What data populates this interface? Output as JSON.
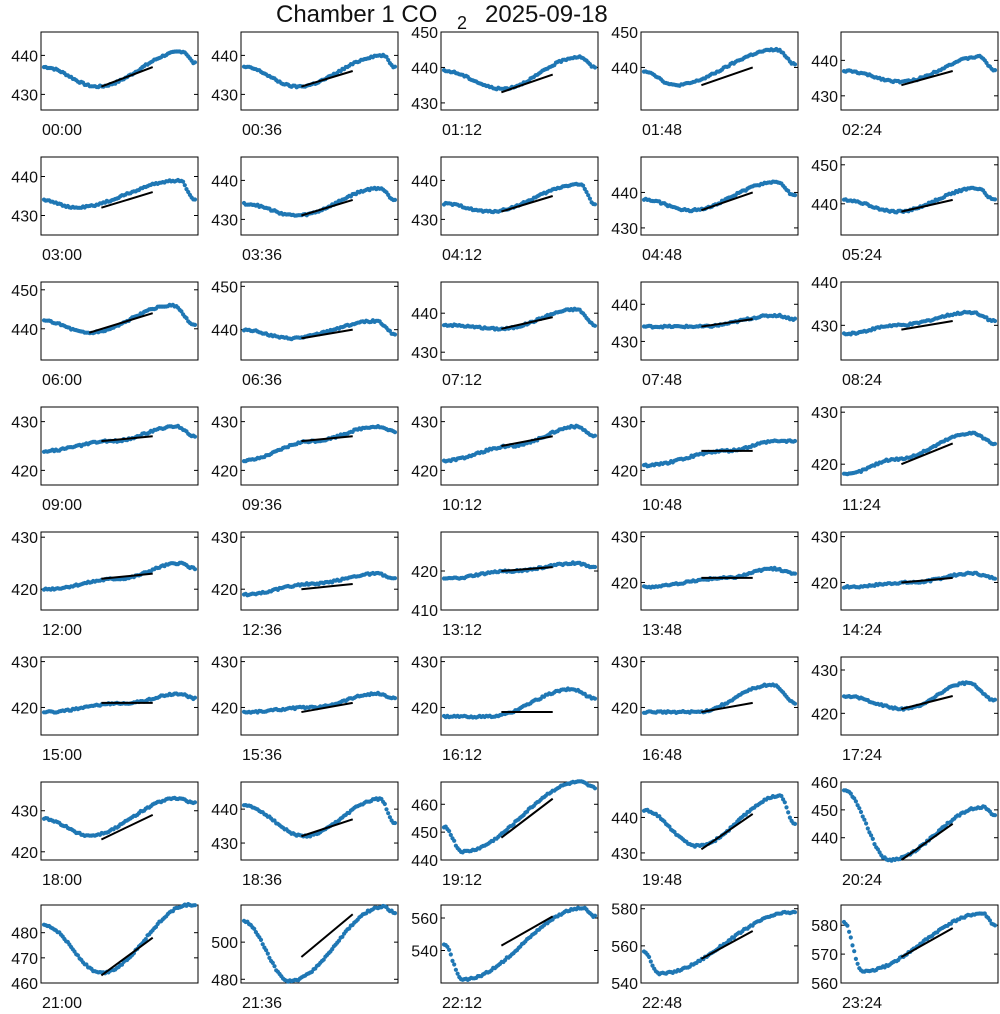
{
  "chart_data": {
    "type": "scatter",
    "title_main": "Chamber 1 CO",
    "title_sub": "2",
    "title_date": "2025-09-18",
    "layout": "8 rows x 5 columns of small multiples",
    "marker_color": "#1f77b4",
    "fit_line_color": "#000000",
    "grid": false,
    "panels": [
      {
        "label": "00:00",
        "ylim": [
          426,
          446
        ],
        "yticks": [
          430,
          440
        ],
        "start": 437,
        "min": [
          0.35,
          432
        ],
        "peak": [
          0.92,
          441
        ],
        "end": 438,
        "fit": [
          [
            0.38,
            432
          ],
          [
            0.72,
            437
          ]
        ]
      },
      {
        "label": "00:36",
        "ylim": [
          426,
          446
        ],
        "yticks": [
          430,
          440
        ],
        "start": 437,
        "min": [
          0.35,
          432
        ],
        "peak": [
          0.92,
          440
        ],
        "end": 437,
        "fit": [
          [
            0.38,
            432
          ],
          [
            0.72,
            436
          ]
        ]
      },
      {
        "label": "01:12",
        "ylim": [
          428,
          450
        ],
        "yticks": [
          430,
          440,
          450
        ],
        "start": 439,
        "min": [
          0.38,
          434
        ],
        "peak": [
          0.9,
          443
        ],
        "end": 440,
        "fit": [
          [
            0.38,
            433
          ],
          [
            0.72,
            438
          ]
        ]
      },
      {
        "label": "01:48",
        "ylim": [
          428,
          450
        ],
        "yticks": [
          440,
          450
        ],
        "start": 439,
        "min": [
          0.2,
          435
        ],
        "peak": [
          0.88,
          445
        ],
        "end": 441,
        "fit": [
          [
            0.38,
            435
          ],
          [
            0.72,
            440
          ]
        ]
      },
      {
        "label": "02:24",
        "ylim": [
          426,
          448
        ],
        "yticks": [
          430,
          440
        ],
        "start": 437,
        "min": [
          0.38,
          434
        ],
        "peak": [
          0.9,
          441
        ],
        "end": 437,
        "fit": [
          [
            0.38,
            433
          ],
          [
            0.72,
            437
          ]
        ]
      },
      {
        "label": "03:00",
        "ylim": [
          425,
          445
        ],
        "yticks": [
          430,
          440
        ],
        "start": 434,
        "min": [
          0.2,
          432
        ],
        "peak": [
          0.9,
          439
        ],
        "end": 434,
        "fit": [
          [
            0.38,
            432
          ],
          [
            0.72,
            436
          ]
        ]
      },
      {
        "label": "03:36",
        "ylim": [
          426,
          446
        ],
        "yticks": [
          430,
          440
        ],
        "start": 434,
        "min": [
          0.35,
          431
        ],
        "peak": [
          0.9,
          438
        ],
        "end": 435,
        "fit": [
          [
            0.38,
            431
          ],
          [
            0.72,
            435
          ]
        ]
      },
      {
        "label": "04:12",
        "ylim": [
          426,
          446
        ],
        "yticks": [
          430,
          440
        ],
        "start": 434,
        "min": [
          0.3,
          432
        ],
        "peak": [
          0.9,
          439
        ],
        "end": 434,
        "fit": [
          [
            0.38,
            432
          ],
          [
            0.72,
            436
          ]
        ]
      },
      {
        "label": "04:48",
        "ylim": [
          428,
          450
        ],
        "yticks": [
          430,
          440
        ],
        "start": 438,
        "min": [
          0.3,
          435
        ],
        "peak": [
          0.88,
          443
        ],
        "end": 439,
        "fit": [
          [
            0.38,
            435
          ],
          [
            0.72,
            440
          ]
        ]
      },
      {
        "label": "05:24",
        "ylim": [
          432,
          452
        ],
        "yticks": [
          440,
          450
        ],
        "start": 441,
        "min": [
          0.35,
          438
        ],
        "peak": [
          0.88,
          444
        ],
        "end": 441,
        "fit": [
          [
            0.38,
            438
          ],
          [
            0.72,
            441
          ]
        ]
      },
      {
        "label": "06:00",
        "ylim": [
          432,
          452
        ],
        "yticks": [
          440,
          450
        ],
        "start": 442,
        "min": [
          0.3,
          439
        ],
        "peak": [
          0.85,
          446
        ],
        "end": 441,
        "fit": [
          [
            0.3,
            439
          ],
          [
            0.72,
            444
          ]
        ]
      },
      {
        "label": "06:36",
        "ylim": [
          433,
          451
        ],
        "yticks": [
          440,
          450
        ],
        "start": 440,
        "min": [
          0.3,
          438
        ],
        "peak": [
          0.88,
          442
        ],
        "end": 439,
        "fit": [
          [
            0.38,
            438
          ],
          [
            0.72,
            440
          ]
        ]
      },
      {
        "label": "07:12",
        "ylim": [
          428,
          448
        ],
        "yticks": [
          430,
          440
        ],
        "start": 437,
        "min": [
          0.38,
          436
        ],
        "peak": [
          0.88,
          441
        ],
        "end": 437,
        "fit": [
          [
            0.38,
            436
          ],
          [
            0.72,
            439
          ]
        ]
      },
      {
        "label": "07:48",
        "ylim": [
          425,
          446
        ],
        "yticks": [
          430,
          440
        ],
        "start": 434,
        "min": [
          0.38,
          434
        ],
        "peak": [
          0.88,
          437
        ],
        "end": 436,
        "fit": [
          [
            0.38,
            434
          ],
          [
            0.72,
            436
          ]
        ]
      },
      {
        "label": "08:24",
        "ylim": [
          422,
          440
        ],
        "yticks": [
          430,
          440
        ],
        "start": 428,
        "min": [
          0.35,
          430
        ],
        "peak": [
          0.85,
          433
        ],
        "end": 431,
        "fit": [
          [
            0.38,
            429
          ],
          [
            0.72,
            431
          ]
        ]
      },
      {
        "label": "09:00",
        "ylim": [
          417,
          433
        ],
        "yticks": [
          420,
          430
        ],
        "start": 424,
        "min": [
          0.45,
          426
        ],
        "peak": [
          0.88,
          429
        ],
        "end": 427,
        "fit": [
          [
            0.38,
            426
          ],
          [
            0.72,
            427
          ]
        ]
      },
      {
        "label": "09:36",
        "ylim": [
          417,
          433
        ],
        "yticks": [
          420,
          430
        ],
        "start": 422,
        "min": [
          0.45,
          426
        ],
        "peak": [
          0.88,
          429
        ],
        "end": 428,
        "fit": [
          [
            0.38,
            426
          ],
          [
            0.72,
            427
          ]
        ]
      },
      {
        "label": "10:12",
        "ylim": [
          417,
          433
        ],
        "yticks": [
          420,
          430
        ],
        "start": 422,
        "min": [
          0.45,
          425
        ],
        "peak": [
          0.88,
          429
        ],
        "end": 427,
        "fit": [
          [
            0.38,
            425
          ],
          [
            0.72,
            427
          ]
        ]
      },
      {
        "label": "10:48",
        "ylim": [
          417,
          433
        ],
        "yticks": [
          420,
          430
        ],
        "start": 421,
        "min": [
          0.55,
          424
        ],
        "peak": [
          0.88,
          426
        ],
        "end": 426,
        "fit": [
          [
            0.38,
            424
          ],
          [
            0.72,
            424
          ]
        ]
      },
      {
        "label": "11:24",
        "ylim": [
          416,
          431
        ],
        "yticks": [
          420,
          430
        ],
        "start": 418,
        "min": [
          0.35,
          421
        ],
        "peak": [
          0.85,
          426
        ],
        "end": 424,
        "fit": [
          [
            0.38,
            420
          ],
          [
            0.72,
            424
          ]
        ]
      },
      {
        "label": "12:00",
        "ylim": [
          416,
          431
        ],
        "yticks": [
          420,
          430
        ],
        "start": 420,
        "min": [
          0.5,
          422
        ],
        "peak": [
          0.9,
          425
        ],
        "end": 424,
        "fit": [
          [
            0.38,
            422
          ],
          [
            0.72,
            423
          ]
        ]
      },
      {
        "label": "12:36",
        "ylim": [
          416,
          431
        ],
        "yticks": [
          420,
          430
        ],
        "start": 419,
        "min": [
          0.45,
          421
        ],
        "peak": [
          0.88,
          423
        ],
        "end": 422,
        "fit": [
          [
            0.38,
            420
          ],
          [
            0.72,
            421
          ]
        ]
      },
      {
        "label": "13:12",
        "ylim": [
          410,
          430
        ],
        "yticks": [
          410,
          420
        ],
        "start": 418,
        "min": [
          0.45,
          420
        ],
        "peak": [
          0.88,
          422
        ],
        "end": 421,
        "fit": [
          [
            0.38,
            420
          ],
          [
            0.72,
            421
          ]
        ]
      },
      {
        "label": "13:48",
        "ylim": [
          414,
          431
        ],
        "yticks": [
          420,
          430
        ],
        "start": 419,
        "min": [
          0.55,
          421
        ],
        "peak": [
          0.85,
          423
        ],
        "end": 422,
        "fit": [
          [
            0.38,
            421
          ],
          [
            0.72,
            421
          ]
        ]
      },
      {
        "label": "14:24",
        "ylim": [
          414,
          431
        ],
        "yticks": [
          420,
          430
        ],
        "start": 419,
        "min": [
          0.45,
          420
        ],
        "peak": [
          0.85,
          422
        ],
        "end": 421,
        "fit": [
          [
            0.38,
            420
          ],
          [
            0.72,
            421
          ]
        ]
      },
      {
        "label": "15:00",
        "ylim": [
          414,
          431
        ],
        "yticks": [
          420,
          430
        ],
        "start": 419,
        "min": [
          0.55,
          421
        ],
        "peak": [
          0.9,
          423
        ],
        "end": 422,
        "fit": [
          [
            0.38,
            421
          ],
          [
            0.72,
            421
          ]
        ]
      },
      {
        "label": "15:36",
        "ylim": [
          414,
          431
        ],
        "yticks": [
          420,
          430
        ],
        "start": 419,
        "min": [
          0.45,
          420
        ],
        "peak": [
          0.88,
          423
        ],
        "end": 422,
        "fit": [
          [
            0.38,
            419
          ],
          [
            0.72,
            421
          ]
        ]
      },
      {
        "label": "16:12",
        "ylim": [
          414,
          431
        ],
        "yticks": [
          420,
          430
        ],
        "start": 418,
        "min": [
          0.3,
          418
        ],
        "peak": [
          0.85,
          424
        ],
        "end": 422,
        "fit": [
          [
            0.38,
            419
          ],
          [
            0.72,
            419
          ]
        ]
      },
      {
        "label": "16:48",
        "ylim": [
          414,
          431
        ],
        "yticks": [
          420,
          430
        ],
        "start": 419,
        "min": [
          0.35,
          419
        ],
        "peak": [
          0.85,
          425
        ],
        "end": 421,
        "fit": [
          [
            0.38,
            419
          ],
          [
            0.72,
            421
          ]
        ]
      },
      {
        "label": "17:24",
        "ylim": [
          415,
          433
        ],
        "yticks": [
          420,
          430
        ],
        "start": 424,
        "min": [
          0.4,
          421
        ],
        "peak": [
          0.82,
          427
        ],
        "end": 423,
        "fit": [
          [
            0.38,
            421
          ],
          [
            0.72,
            424
          ]
        ]
      },
      {
        "label": "18:00",
        "ylim": [
          418,
          437
        ],
        "yticks": [
          420,
          430
        ],
        "start": 428,
        "min": [
          0.3,
          424
        ],
        "peak": [
          0.88,
          433
        ],
        "end": 432,
        "fit": [
          [
            0.38,
            423
          ],
          [
            0.72,
            429
          ]
        ]
      },
      {
        "label": "18:36",
        "ylim": [
          425,
          448
        ],
        "yticks": [
          430,
          440
        ],
        "start": 441,
        "min": [
          0.4,
          432
        ],
        "peak": [
          0.9,
          443
        ],
        "end": 436,
        "fit": [
          [
            0.38,
            432
          ],
          [
            0.72,
            437
          ]
        ]
      },
      {
        "label": "19:12",
        "ylim": [
          440,
          468
        ],
        "yticks": [
          440,
          450,
          460
        ],
        "start": 452,
        "min": [
          0.12,
          443
        ],
        "peak": [
          0.9,
          468
        ],
        "end": 466,
        "fit": [
          [
            0.38,
            448
          ],
          [
            0.72,
            462
          ]
        ]
      },
      {
        "label": "19:48",
        "ylim": [
          428,
          450
        ],
        "yticks": [
          430,
          440
        ],
        "start": 442,
        "min": [
          0.35,
          432
        ],
        "peak": [
          0.9,
          446
        ],
        "end": 438,
        "fit": [
          [
            0.38,
            431
          ],
          [
            0.72,
            441
          ]
        ]
      },
      {
        "label": "20:24",
        "ylim": [
          432,
          460
        ],
        "yticks": [
          440,
          450,
          460
        ],
        "start": 457,
        "min": [
          0.3,
          432
        ],
        "peak": [
          0.92,
          451
        ],
        "end": 448,
        "fit": [
          [
            0.38,
            432
          ],
          [
            0.72,
            445
          ]
        ]
      },
      {
        "label": "21:00",
        "ylim": [
          460,
          491
        ],
        "yticks": [
          460,
          470,
          480
        ],
        "start": 483,
        "min": [
          0.38,
          464
        ],
        "peak": [
          0.96,
          491
        ],
        "end": 491,
        "fit": [
          [
            0.38,
            463
          ],
          [
            0.72,
            478
          ]
        ]
      },
      {
        "label": "21:36",
        "ylim": [
          478,
          520
        ],
        "yticks": [
          480,
          500
        ],
        "start": 511,
        "min": [
          0.3,
          479
        ],
        "peak": [
          0.92,
          519
        ],
        "end": 516,
        "fit": [
          [
            0.38,
            492
          ],
          [
            0.72,
            515
          ]
        ]
      },
      {
        "label": "22:12",
        "ylim": [
          520,
          568
        ],
        "yticks": [
          540,
          560
        ],
        "start": 544,
        "min": [
          0.12,
          522
        ],
        "peak": [
          0.92,
          566
        ],
        "end": 561,
        "fit": [
          [
            0.38,
            543
          ],
          [
            0.72,
            561
          ]
        ]
      },
      {
        "label": "22:48",
        "ylim": [
          540,
          582
        ],
        "yticks": [
          540,
          560,
          580
        ],
        "start": 557,
        "min": [
          0.1,
          545
        ],
        "peak": [
          0.98,
          578
        ],
        "end": 578,
        "fit": [
          [
            0.38,
            553
          ],
          [
            0.72,
            568
          ]
        ]
      },
      {
        "label": "23:24",
        "ylim": [
          560,
          587
        ],
        "yticks": [
          560,
          570,
          580
        ],
        "start": 581,
        "min": [
          0.12,
          564
        ],
        "peak": [
          0.92,
          584
        ],
        "end": 580,
        "fit": [
          [
            0.38,
            569
          ],
          [
            0.72,
            579
          ]
        ]
      }
    ]
  }
}
